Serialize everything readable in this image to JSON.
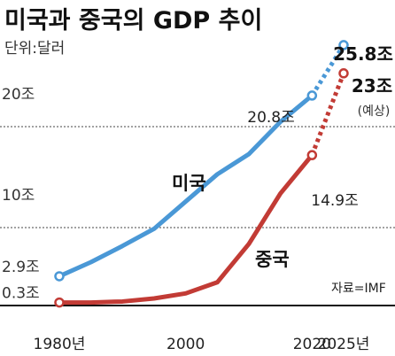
{
  "chart_data": {
    "type": "line",
    "title": "미국과 중국의 GDP 추이",
    "unit_label": "단위:달러",
    "y_ticks": [
      {
        "value": 0.3,
        "label": "0.3조"
      },
      {
        "value": 2.9,
        "label": "2.9조"
      },
      {
        "value": 10,
        "label": "10조"
      },
      {
        "value": 20,
        "label": "20조"
      }
    ],
    "x_ticks": [
      {
        "value": 1980,
        "label": "1980년"
      },
      {
        "value": 2000,
        "label": "2000"
      },
      {
        "value": 2020,
        "label": "2020"
      },
      {
        "value": 2025,
        "label": "2025년"
      }
    ],
    "xlim": [
      1980,
      2025
    ],
    "ylim": [
      0,
      25.8
    ],
    "grid": "dashed horizontal lines at 10 and 20",
    "series": [
      {
        "name": "미국",
        "color": "#4a98d6",
        "x": [
          1980,
          1985,
          1990,
          1995,
          2000,
          2005,
          2010,
          2015,
          2020
        ],
        "y": [
          2.9,
          4.3,
          5.9,
          7.6,
          10.3,
          13.0,
          15.0,
          18.2,
          20.8
        ],
        "projection": {
          "x": [
            2020,
            2025
          ],
          "y": [
            20.8,
            25.8
          ]
        }
      },
      {
        "name": "중국",
        "color": "#c23b35",
        "x": [
          1980,
          1985,
          1990,
          1995,
          2000,
          2005,
          2010,
          2015,
          2020
        ],
        "y": [
          0.3,
          0.3,
          0.4,
          0.7,
          1.2,
          2.3,
          6.1,
          11.1,
          14.9
        ],
        "projection": {
          "x": [
            2020,
            2025
          ],
          "y": [
            14.9,
            23
          ]
        }
      }
    ],
    "annotations": {
      "us_2020": "20.8조",
      "us_2025": "25.8조",
      "cn_2020": "14.9조",
      "cn_2025": "23조",
      "forecast": "(예상)"
    },
    "source": "자료=IMF"
  }
}
